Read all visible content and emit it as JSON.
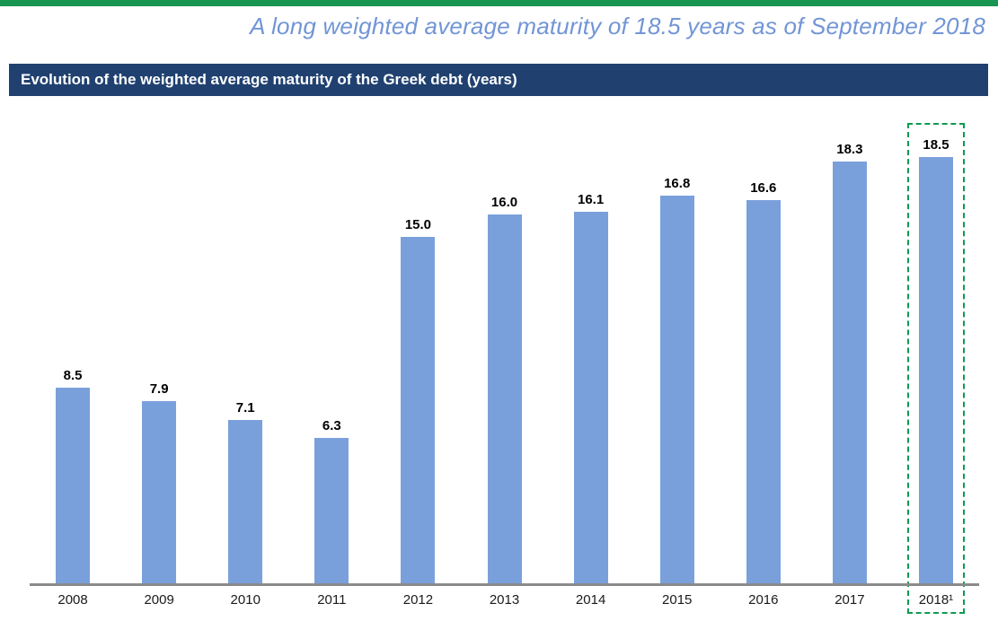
{
  "page": {
    "title": "A long weighted average maturity of 18.5 years as of September 2018",
    "section_header": "Evolution of the weighted average maturity of the Greek debt (years)"
  },
  "colors": {
    "top_accent_green": "#179551",
    "section_header_navy": "#204170",
    "title_blue": "#7195D6",
    "bar_blue": "#7AA0DB",
    "axis_gray": "#8a8a8a",
    "highlight_dash_green": "#0D9B51",
    "value_label_black": "#000000"
  },
  "chart_data": {
    "type": "bar",
    "title": "Evolution of the weighted average maturity of the Greek debt (years)",
    "categories": [
      "2008",
      "2009",
      "2010",
      "2011",
      "2012",
      "2013",
      "2014",
      "2015",
      "2016",
      "2017",
      "2018¹"
    ],
    "values": [
      8.5,
      7.9,
      7.1,
      6.3,
      15.0,
      16.0,
      16.1,
      16.8,
      16.6,
      18.3,
      18.5
    ],
    "value_labels": [
      "8.5",
      "7.9",
      "7.1",
      "6.3",
      "15.0",
      "16.0",
      "16.1",
      "16.8",
      "16.6",
      "18.3",
      "18.5"
    ],
    "xlabel": "",
    "ylabel": "",
    "ylim": [
      0,
      20
    ],
    "grid": false,
    "legend": "none",
    "value_labels_shown": true,
    "highlighted_category": "2018¹",
    "highlight_style": "green-dashed-box"
  }
}
